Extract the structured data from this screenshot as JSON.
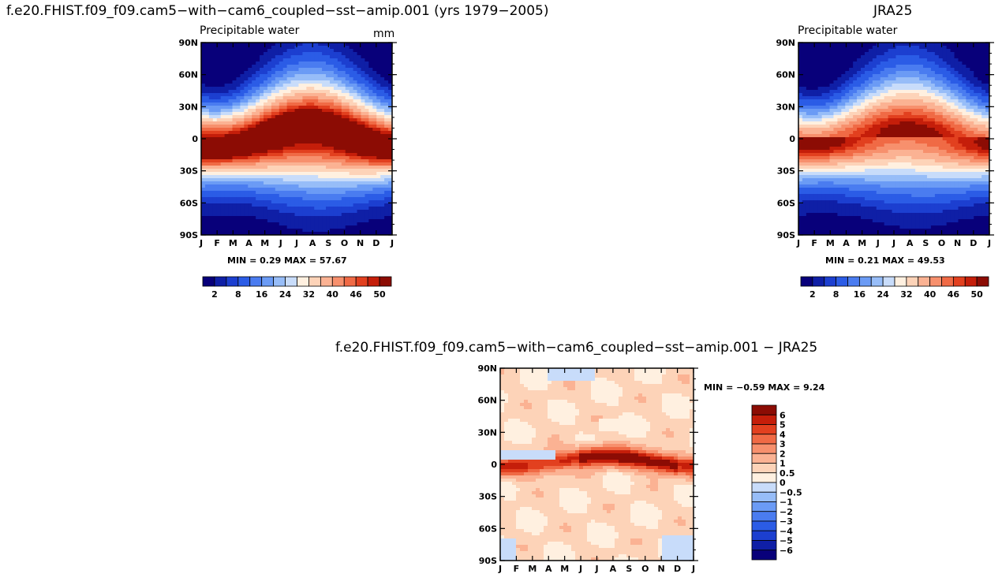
{
  "main_title": "f.e20.FHIST.f09_f09.cam5−with−cam6_coupled−sst−amip.001 (yrs 1979−2005)",
  "right_title": "JRA25",
  "diff_title": "f.e20.FHIST.f09_f09.cam5−with−cam6_coupled−sst−amip.001  −  JRA25",
  "chart_data": [
    {
      "id": "model",
      "type": "heatmap",
      "title": "Precipitable water",
      "units": "mm",
      "x_ticks": [
        "J",
        "F",
        "M",
        "A",
        "M",
        "J",
        "J",
        "A",
        "S",
        "O",
        "N",
        "D",
        "J"
      ],
      "y_ticks": [
        "90N",
        "60N",
        "30N",
        "0",
        "30S",
        "60S",
        "90S"
      ],
      "y_values": [
        90,
        60,
        30,
        0,
        -30,
        -60,
        -90
      ],
      "min_label": "MIN =",
      "min_value": "0.29",
      "max_label": "MAX =",
      "max_value": "57.67",
      "min": 0.29,
      "max": 57.67,
      "colorbar_labels": [
        "2",
        "8",
        "16",
        "24",
        "32",
        "40",
        "46",
        "50"
      ],
      "colors": [
        "#08007a",
        "#0f1fa6",
        "#1c3fd0",
        "#2b5ce6",
        "#4a7cf0",
        "#6b9bf5",
        "#97bdf8",
        "#c8dcfa",
        "#fff0e0",
        "#fdd3b8",
        "#fbb293",
        "#f7906d",
        "#f06a45",
        "#e2401f",
        "#c51e0a",
        "#8c0c04"
      ]
    },
    {
      "id": "obs",
      "type": "heatmap",
      "title": "Precipitable water",
      "units": "",
      "x_ticks": [
        "J",
        "F",
        "M",
        "A",
        "M",
        "J",
        "J",
        "A",
        "S",
        "O",
        "N",
        "D",
        "J"
      ],
      "y_ticks": [
        "90N",
        "60N",
        "30N",
        "0",
        "30S",
        "60S",
        "90S"
      ],
      "y_values": [
        90,
        60,
        30,
        0,
        -30,
        -60,
        -90
      ],
      "min_label": "MIN =",
      "min_value": "0.21",
      "max_label": "MAX =",
      "max_value": "49.53",
      "min": 0.21,
      "max": 49.53,
      "colorbar_labels": [
        "2",
        "8",
        "16",
        "24",
        "32",
        "40",
        "46",
        "50"
      ],
      "colors": [
        "#08007a",
        "#0f1fa6",
        "#1c3fd0",
        "#2b5ce6",
        "#4a7cf0",
        "#6b9bf5",
        "#97bdf8",
        "#c8dcfa",
        "#fff0e0",
        "#fdd3b8",
        "#fbb293",
        "#f7906d",
        "#f06a45",
        "#e2401f",
        "#c51e0a",
        "#8c0c04"
      ]
    },
    {
      "id": "diff",
      "type": "heatmap",
      "title": "",
      "x_ticks": [
        "J",
        "F",
        "M",
        "A",
        "M",
        "J",
        "J",
        "A",
        "S",
        "O",
        "N",
        "D",
        "J"
      ],
      "y_ticks": [
        "90N",
        "60N",
        "30N",
        "0",
        "30S",
        "60S",
        "90S"
      ],
      "y_values": [
        90,
        60,
        30,
        0,
        -30,
        -60,
        -90
      ],
      "min_label": "MIN =",
      "min_value": "−0.59",
      "max_label": "MAX =",
      "max_value": "9.24",
      "min": -0.59,
      "max": 9.24,
      "colorbar_labels": [
        "6",
        "5",
        "4",
        "3",
        "2",
        "1",
        "0.5",
        "0",
        "−0.5",
        "−1",
        "−2",
        "−3",
        "−4",
        "−5",
        "−6"
      ],
      "colors": [
        "#8c0c04",
        "#c51e0a",
        "#e2401f",
        "#f06a45",
        "#f7906d",
        "#fbb293",
        "#fdd3b8",
        "#fff0e0",
        "#c8dcfa",
        "#97bdf8",
        "#6b9bf5",
        "#4a7cf0",
        "#2b5ce6",
        "#1c3fd0",
        "#0f1fa6",
        "#08007a"
      ]
    }
  ]
}
